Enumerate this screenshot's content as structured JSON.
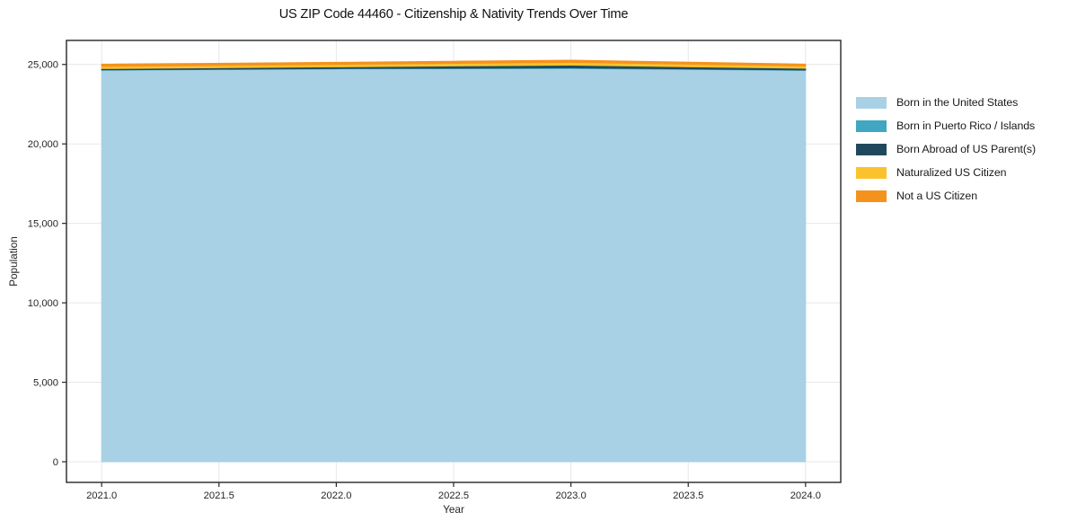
{
  "page": {
    "background": "#ffffff"
  },
  "chart_data": {
    "type": "area",
    "stacked": true,
    "title": "US ZIP Code 44460 - Citizenship & Nativity Trends Over Time",
    "xlabel": "Year",
    "ylabel": "Population",
    "x": [
      2021,
      2022,
      2023,
      2024
    ],
    "series": [
      {
        "name": "Born in the United States",
        "color": "#a8d1e6",
        "values": [
          24640,
          24720,
          24750,
          24630
        ]
      },
      {
        "name": "Born in Puerto Rico / Islands",
        "color": "#41a6c1",
        "values": [
          20,
          30,
          40,
          20
        ]
      },
      {
        "name": "Born Abroad of US Parent(s)",
        "color": "#20485c",
        "values": [
          80,
          100,
          170,
          110
        ]
      },
      {
        "name": "Naturalized US Citizen",
        "color": "#fcc22d",
        "values": [
          140,
          150,
          170,
          140
        ]
      },
      {
        "name": "Not a US Citizen",
        "color": "#f5921e",
        "values": [
          140,
          130,
          140,
          120
        ]
      }
    ],
    "xlim": [
      2020.85,
      2024.15
    ],
    "ylim": [
      -1300,
      26512
    ],
    "x_ticks": [
      2021.0,
      2021.5,
      2022.0,
      2022.5,
      2023.0,
      2023.5,
      2024.0
    ],
    "x_tick_labels": [
      "2021.0",
      "2021.5",
      "2022.0",
      "2022.5",
      "2023.0",
      "2023.5",
      "2024.0"
    ],
    "y_ticks": [
      0,
      5000,
      10000,
      15000,
      20000,
      25000
    ],
    "y_tick_labels": [
      "0",
      "5,000",
      "10,000",
      "15,000",
      "20,000",
      "25,000"
    ],
    "grid": true,
    "grid_color": "#e7e7e7",
    "axis_color": "#262626",
    "legend_position": "outside-right"
  }
}
